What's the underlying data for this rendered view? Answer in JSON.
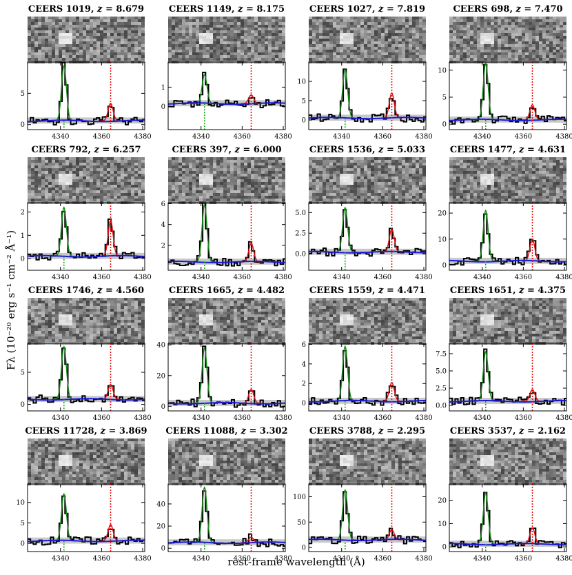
{
  "figure": {
    "ylabel": "Fλ (10⁻²⁰ erg s⁻¹ cm⁻² Å⁻¹)",
    "xlabel": "rest-frame wavelength (Å)"
  },
  "colors": {
    "data": "#000000",
    "gaussian_hgamma": "#1a8a1a",
    "gaussian_oiii": "#dd1111",
    "continuum": "#1a1ad6",
    "uncertainty": "#c8c8c8",
    "hgamma_marker": "#11aa11",
    "oiii_marker": "#ee1111"
  },
  "chart_data": [
    {
      "type": "line",
      "title": "CEERS 1019, z = 8.679",
      "object": "CEERS 1019",
      "z": "8.679",
      "xlim": [
        4324,
        4381
      ],
      "ylim": [
        -0.8,
        10
      ],
      "yticks": [
        0,
        5
      ],
      "xticks": [
        4340,
        4360,
        4380
      ],
      "hg_amp": 8.8,
      "oiii_amp": 2.8,
      "cont": 0.6,
      "seed": 3
    },
    {
      "type": "line",
      "title": "CEERS 1149, z = 8.175",
      "object": "CEERS 1149",
      "z": "8.175",
      "xlim": [
        4324,
        4381
      ],
      "ylim": [
        -1.2,
        2.3
      ],
      "yticks": [
        0,
        1
      ],
      "xticks": [
        4340,
        4360,
        4380
      ],
      "hg_amp": 1.5,
      "oiii_amp": 0.45,
      "cont": 0.15,
      "seed": 7
    },
    {
      "type": "line",
      "title": "CEERS 1027, z = 7.819",
      "object": "CEERS 1027",
      "z": "7.819",
      "xlim": [
        4324,
        4381
      ],
      "ylim": [
        -2.5,
        15
      ],
      "yticks": [
        0,
        5,
        10
      ],
      "xticks": [
        4340,
        4360,
        4380
      ],
      "hg_amp": 12.5,
      "oiii_amp": 6.5,
      "cont": 0.5,
      "seed": 11
    },
    {
      "type": "line",
      "title": "CEERS 698, z = 7.470",
      "object": "CEERS 698",
      "z": "7.470",
      "xlim": [
        4324,
        4381
      ],
      "ylim": [
        -1.0,
        11.5
      ],
      "yticks": [
        0,
        5,
        10
      ],
      "xticks": [
        4340,
        4360,
        4380
      ],
      "hg_amp": 10.5,
      "oiii_amp": 2.8,
      "cont": 0.8,
      "seed": 5
    },
    {
      "type": "line",
      "title": "CEERS 792, z = 6.257",
      "object": "CEERS 792",
      "z": "6.257",
      "xlim": [
        4324,
        4381
      ],
      "ylim": [
        -0.5,
        2.4
      ],
      "yticks": [
        0,
        1,
        2
      ],
      "xticks": [
        4340,
        4360,
        4380
      ],
      "hg_amp": 2.1,
      "oiii_amp": 1.55,
      "cont": 0.1,
      "seed": 13
    },
    {
      "type": "line",
      "title": "CEERS 397, z = 6.000",
      "object": "CEERS 397",
      "z": "6.000",
      "xlim": [
        4324,
        4381
      ],
      "ylim": [
        -0.4,
        6.1
      ],
      "yticks": [
        2,
        4,
        6
      ],
      "xticks": [
        4340,
        4360,
        4380
      ],
      "hg_amp": 5.5,
      "oiii_amp": 1.8,
      "cont": 0.4,
      "seed": 17
    },
    {
      "type": "line",
      "title": "CEERS 1536, z = 5.033",
      "object": "CEERS 1536",
      "z": "5.033",
      "xlim": [
        4324,
        4381
      ],
      "ylim": [
        -2.0,
        6.2
      ],
      "yticks": [
        0.0,
        2.5,
        5.0
      ],
      "xticks": [
        4340,
        4360,
        4380
      ],
      "hg_amp": 5.4,
      "oiii_amp": 2.8,
      "cont": 0.2,
      "seed": 19
    },
    {
      "type": "line",
      "title": "CEERS 1477, z = 4.631",
      "object": "CEERS 1477",
      "z": "4.631",
      "xlim": [
        4324,
        4381
      ],
      "ylim": [
        -2.0,
        24
      ],
      "yticks": [
        0,
        10,
        20
      ],
      "xticks": [
        4340,
        4360,
        4380
      ],
      "hg_amp": 19.5,
      "oiii_amp": 8.5,
      "cont": 1.5,
      "seed": 23
    },
    {
      "type": "line",
      "title": "CEERS 1746, z = 4.560",
      "object": "CEERS 1746",
      "z": "4.560",
      "xlim": [
        4324,
        4381
      ],
      "ylim": [
        -1.0,
        9.5
      ],
      "yticks": [
        0,
        5
      ],
      "xticks": [
        4340,
        4360,
        4380
      ],
      "hg_amp": 8.2,
      "oiii_amp": 2.3,
      "cont": 0.8,
      "seed": 29
    },
    {
      "type": "line",
      "title": "CEERS 1665, z = 4.482",
      "object": "CEERS 1665",
      "z": "4.482",
      "xlim": [
        4324,
        4381
      ],
      "ylim": [
        -3,
        41
      ],
      "yticks": [
        0,
        20,
        40
      ],
      "xticks": [
        4340,
        4360,
        4380
      ],
      "hg_amp": 36,
      "oiii_amp": 9,
      "cont": 2,
      "seed": 31
    },
    {
      "type": "line",
      "title": "CEERS 1559, z = 4.471",
      "object": "CEERS 1559",
      "z": "4.471",
      "xlim": [
        4324,
        4381
      ],
      "ylim": [
        -0.8,
        6.1
      ],
      "yticks": [
        0,
        2,
        4,
        6
      ],
      "xticks": [
        4340,
        4360,
        4380
      ],
      "hg_amp": 5.6,
      "oiii_amp": 1.9,
      "cont": 0.2,
      "seed": 37
    },
    {
      "type": "line",
      "title": "CEERS 1651, z = 4.375",
      "object": "CEERS 1651",
      "z": "4.375",
      "xlim": [
        4324,
        4381
      ],
      "ylim": [
        -0.8,
        9
      ],
      "yticks": [
        0.0,
        2.5,
        5.0,
        7.5
      ],
      "xticks": [
        4340,
        4360,
        4380
      ],
      "hg_amp": 7.2,
      "oiii_amp": 1.7,
      "cont": 0.6,
      "seed": 41
    },
    {
      "type": "line",
      "title": "CEERS 11728, z = 3.869",
      "object": "CEERS 11728",
      "z": "3.869",
      "xlim": [
        4324,
        4381
      ],
      "ylim": [
        -2,
        14.5
      ],
      "yticks": [
        0,
        5,
        10
      ],
      "xticks": [
        4340,
        4360,
        4380
      ],
      "hg_amp": 11.5,
      "oiii_amp": 4.0,
      "cont": 0.6,
      "seed": 43
    },
    {
      "type": "line",
      "title": "CEERS 11088, z = 3.302",
      "object": "CEERS 11088",
      "z": "3.302",
      "xlim": [
        4324,
        4381
      ],
      "ylim": [
        -3,
        58
      ],
      "yticks": [
        0,
        20,
        40
      ],
      "xticks": [
        4340,
        4360,
        4380
      ],
      "hg_amp": 50,
      "oiii_amp": 5,
      "cont": 5,
      "seed": 47
    },
    {
      "type": "line",
      "title": "CEERS 3788, z = 2.295",
      "object": "CEERS 3788",
      "z": "2.295",
      "xlim": [
        4324,
        4381
      ],
      "ylim": [
        -8,
        125
      ],
      "yticks": [
        0,
        50,
        100
      ],
      "xticks": [
        4340,
        4360,
        4380
      ],
      "hg_amp": 98,
      "oiii_amp": 20,
      "cont": 15,
      "seed": 53
    },
    {
      "type": "line",
      "title": "CEERS 3537, z = 2.162",
      "object": "CEERS 3537",
      "z": "2.162",
      "xlim": [
        4324,
        4381
      ],
      "ylim": [
        -2,
        27
      ],
      "yticks": [
        0,
        10,
        20
      ],
      "xticks": [
        4340,
        4360,
        4380
      ],
      "hg_amp": 22,
      "oiii_amp": 7,
      "cont": 1.2,
      "seed": 59
    }
  ],
  "lines": {
    "hgamma_rest_A": 4341.7,
    "oiii_rest_A": 4364.4
  }
}
